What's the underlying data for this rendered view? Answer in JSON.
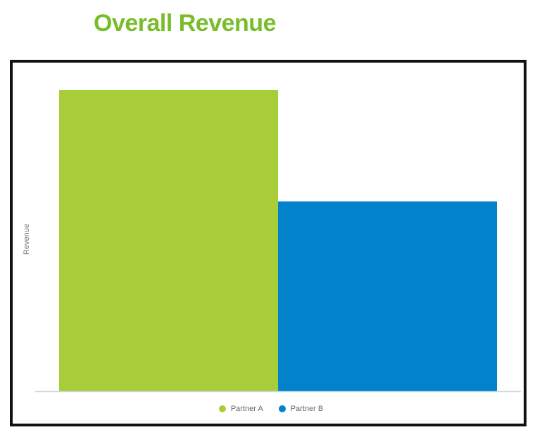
{
  "chart_data": {
    "type": "bar",
    "title": "Overall Revenue",
    "xlabel": "",
    "ylabel": "Revenue",
    "categories": [
      "Partner A",
      "Partner B"
    ],
    "values": [
      100,
      63
    ],
    "colors": [
      "#a9cd38",
      "#0282cb"
    ],
    "ylim": [
      0,
      100
    ],
    "grid": false,
    "legend": {
      "position": "bottom",
      "entries": [
        "Partner A",
        "Partner B"
      ]
    }
  }
}
